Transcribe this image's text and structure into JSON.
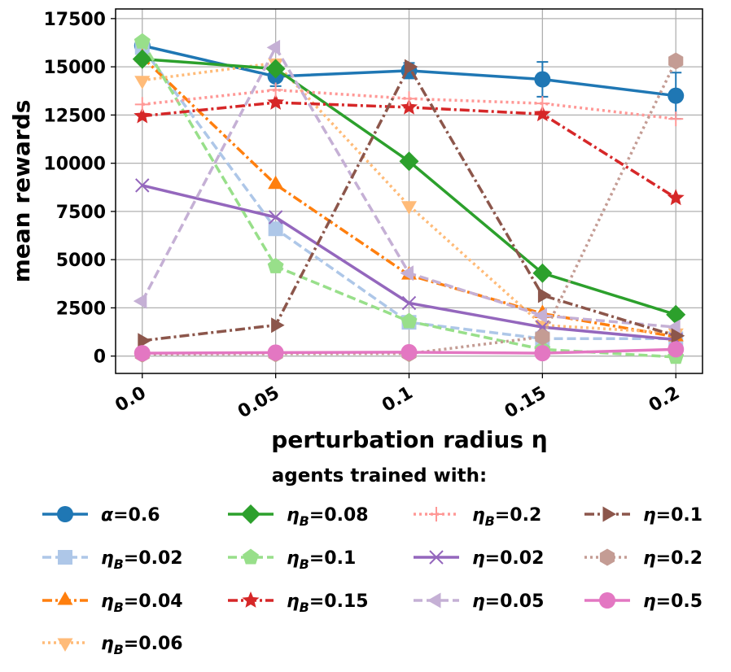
{
  "chart_data": {
    "type": "line",
    "title": "",
    "xlabel": "perturbation radius η",
    "ylabel": "mean rewards",
    "x": [
      0.0,
      0.05,
      0.1,
      0.15,
      0.2
    ],
    "x_tick_labels": [
      "0.0",
      "0.05",
      "0.1",
      "0.15",
      "0.2"
    ],
    "y_ticks": [
      0,
      2500,
      5000,
      7500,
      10000,
      12500,
      15000,
      17500
    ],
    "y_tick_labels": [
      "0",
      "2500",
      "5000",
      "7500",
      "10000",
      "12500",
      "15000",
      "17500"
    ],
    "xlim": [
      -0.01,
      0.21
    ],
    "ylim": [
      -900,
      18000
    ],
    "grid": true,
    "legend_title": "agents trained with:",
    "legend_location": "below plot",
    "series": [
      {
        "name": "α=0.6",
        "color": "#1f77b4",
        "linestyle": "solid",
        "marker": "circle",
        "values": [
          16100,
          14500,
          14800,
          14350,
          13500
        ],
        "error": [
          0,
          500,
          400,
          900,
          1200
        ]
      },
      {
        "name": "ηB=0.02",
        "label_main": "η",
        "label_sub": "B",
        "label_rest": "=0.02",
        "color": "#aec7e8",
        "linestyle": "dashed",
        "marker": "square",
        "values": [
          16000,
          6600,
          1750,
          900,
          900
        ]
      },
      {
        "name": "ηB=0.04",
        "label_main": "η",
        "label_sub": "B",
        "label_rest": "=0.04",
        "color": "#ff7f0e",
        "linestyle": "dashdot",
        "marker": "triangle-up",
        "values": [
          15500,
          8900,
          4200,
          2200,
          1000
        ]
      },
      {
        "name": "ηB=0.06",
        "label_main": "η",
        "label_sub": "B",
        "label_rest": "=0.06",
        "color": "#ffbb78",
        "linestyle": "dotted",
        "marker": "triangle-down",
        "values": [
          14300,
          15200,
          7800,
          1600,
          1200
        ]
      },
      {
        "name": "ηB=0.08",
        "label_main": "η",
        "label_sub": "B",
        "label_rest": "=0.08",
        "color": "#2ca02c",
        "linestyle": "solid",
        "marker": "diamond",
        "values": [
          15400,
          14900,
          10100,
          4300,
          2150
        ]
      },
      {
        "name": "ηB=0.1",
        "label_main": "η",
        "label_sub": "B",
        "label_rest": "=0.1",
        "color": "#98df8a",
        "linestyle": "dashed",
        "marker": "pentagon",
        "values": [
          16300,
          4650,
          1800,
          350,
          -50
        ]
      },
      {
        "name": "ηB=0.15",
        "label_main": "η",
        "label_sub": "B",
        "label_rest": "=0.15",
        "color": "#d62728",
        "linestyle": "dashdot",
        "marker": "star",
        "values": [
          12450,
          13150,
          12900,
          12550,
          8200
        ]
      },
      {
        "name": "ηB=0.2",
        "label_main": "η",
        "label_sub": "B",
        "label_rest": "=0.2",
        "color": "#ff9896",
        "linestyle": "dotted",
        "marker": "plus",
        "values": [
          13050,
          13800,
          13350,
          13100,
          12300
        ]
      },
      {
        "name": "η=0.02",
        "label_main": "η",
        "label_sub": "",
        "label_rest": "=0.02",
        "color": "#9467bd",
        "linestyle": "solid",
        "marker": "x",
        "values": [
          8850,
          7200,
          2750,
          1500,
          850
        ]
      },
      {
        "name": "η=0.05",
        "label_main": "η",
        "label_sub": "",
        "label_rest": "=0.05",
        "color": "#c5b0d5",
        "linestyle": "dashed",
        "marker": "triangle-left",
        "values": [
          2850,
          16000,
          4300,
          2100,
          1500
        ]
      },
      {
        "name": "η=0.1",
        "label_main": "η",
        "label_sub": "",
        "label_rest": "=0.1",
        "color": "#8c564b",
        "linestyle": "dashdot",
        "marker": "triangle-right",
        "values": [
          800,
          1600,
          15000,
          3150,
          1050
        ]
      },
      {
        "name": "η=0.2",
        "label_main": "η",
        "label_sub": "",
        "label_rest": "=0.2",
        "color": "#c49c94",
        "linestyle": "dotted",
        "marker": "hexagon",
        "values": [
          100,
          120,
          130,
          1000,
          15300
        ]
      },
      {
        "name": "η=0.5",
        "label_main": "η",
        "label_sub": "",
        "label_rest": "=0.5",
        "color": "#e377c2",
        "linestyle": "solid",
        "marker": "circle",
        "values": [
          150,
          180,
          200,
          150,
          350
        ]
      }
    ],
    "legend_layout": {
      "columns": [
        [
          "α=0.6",
          "ηB=0.02",
          "ηB=0.04",
          "ηB=0.06"
        ],
        [
          "ηB=0.08",
          "ηB=0.1",
          "ηB=0.15"
        ],
        [
          "ηB=0.2",
          "η=0.02",
          "η=0.05"
        ],
        [
          "η=0.1",
          "η=0.2",
          "η=0.5"
        ]
      ]
    }
  }
}
